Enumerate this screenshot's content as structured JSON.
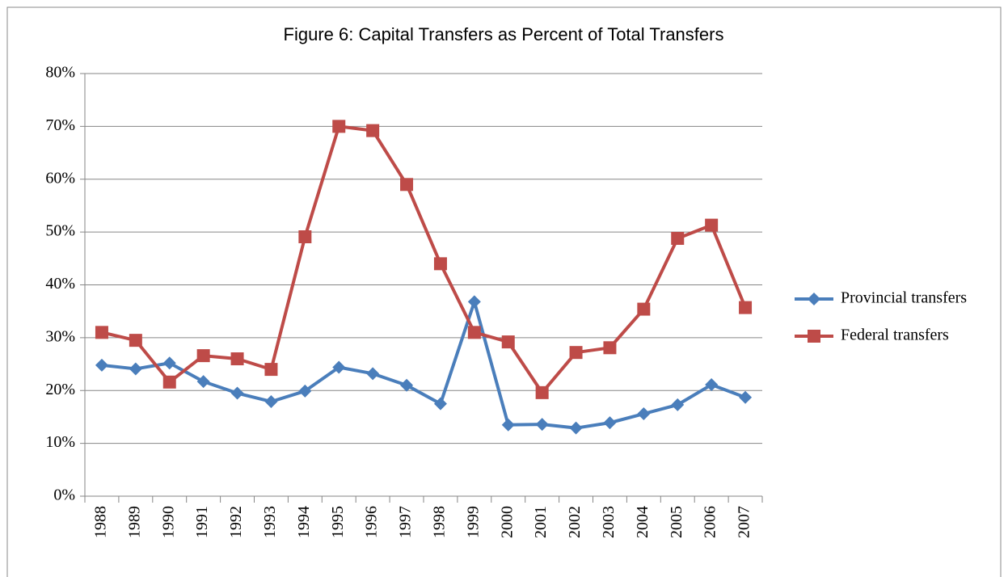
{
  "chart_data": {
    "type": "line",
    "title": "Figure 6: Capital Transfers as Percent of Total Transfers",
    "categories": [
      "1988",
      "1989",
      "1990",
      "1991",
      "1992",
      "1993",
      "1994",
      "1995",
      "1996",
      "1997",
      "1998",
      "1999",
      "2000",
      "2001",
      "2002",
      "2003",
      "2004",
      "2005",
      "2006",
      "2007"
    ],
    "series": [
      {
        "name": "Provincial transfers",
        "color": "#4a7ebb",
        "marker": "diamond",
        "values": [
          24.8,
          24.1,
          25.2,
          21.7,
          19.5,
          17.9,
          19.9,
          24.4,
          23.2,
          21.0,
          17.5,
          36.8,
          13.5,
          13.6,
          12.9,
          13.9,
          15.6,
          17.3,
          21.1,
          18.7
        ]
      },
      {
        "name": "Federal transfers",
        "color": "#be4b48",
        "marker": "square",
        "values": [
          31.0,
          29.5,
          21.6,
          26.6,
          26.0,
          24.0,
          49.1,
          70.0,
          69.2,
          59.0,
          44.0,
          31.0,
          29.2,
          19.6,
          27.2,
          28.1,
          35.4,
          48.8,
          51.3,
          35.7
        ]
      }
    ],
    "ylim": [
      0,
      80
    ],
    "yticks": [
      {
        "value": 0,
        "label": "0%"
      },
      {
        "value": 10,
        "label": "10%"
      },
      {
        "value": 20,
        "label": "20%"
      },
      {
        "value": 30,
        "label": "30%"
      },
      {
        "value": 40,
        "label": "40%"
      },
      {
        "value": 50,
        "label": "50%"
      },
      {
        "value": 60,
        "label": "60%"
      },
      {
        "value": 70,
        "label": "70%"
      },
      {
        "value": 80,
        "label": "80%"
      }
    ],
    "grid": true,
    "legend": "right"
  }
}
